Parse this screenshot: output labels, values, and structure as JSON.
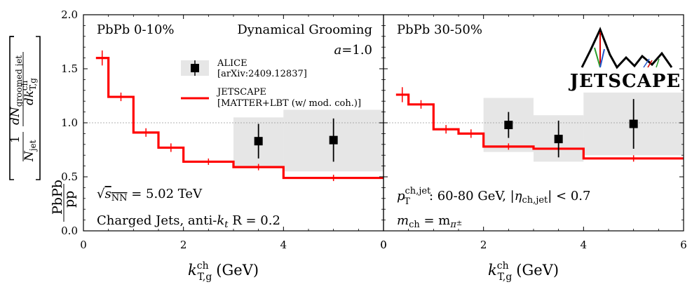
{
  "colors": {
    "jetscape": "#ff0000",
    "alice": "#000000",
    "syst_band": "#e6e6e6",
    "ref_line": "#999999"
  },
  "y_label": {
    "left_fraction_num": "PbPb",
    "left_fraction_den": "pp",
    "bracket_num": "1",
    "bracket_den": "N",
    "bracket_den_sub": "jet",
    "dn_num": "dN",
    "dn_num_sub": "groomed jet",
    "dn_den": "dk",
    "dn_den_sub": "T,g",
    "dn_den_sup": "ch"
  },
  "x_label": {
    "main": "k",
    "sup": "ch",
    "sub": "T,g",
    "unit": "(GeV)"
  },
  "annotations": {
    "panel1_system": "PbPb 0-10%",
    "panel1_grooming": "Dynamical Grooming",
    "panel1_a_sym": "a",
    "panel1_a_val": "=1.0",
    "panel1_energy_pre": "√",
    "panel1_energy_sym": "s",
    "panel1_energy_sub": "NN",
    "panel1_energy_val": " = 5.02 TeV",
    "panel1_jets": "Charged Jets, anti-",
    "panel1_kt": "k",
    "panel1_kt_sub": "t",
    "panel1_R": " R = 0.2",
    "panel2_system": "PbPb 30-50%",
    "panel2_pt_sym": "p",
    "panel2_pt_sup": "ch,jet",
    "panel2_pt_sub": "T",
    "panel2_pt_val": ": 60-80 GeV, |",
    "panel2_eta": "η",
    "panel2_eta_sub": "ch,jet",
    "panel2_eta_val": "| < 0.7",
    "panel2_m_sym": "m",
    "panel2_m_sub": "ch",
    "panel2_m_eq": " = m",
    "panel2_m_pi": "π",
    "panel2_m_pm": "±"
  },
  "legend": {
    "alice_label": "ALICE",
    "alice_ref": "[arXiv:2409.12837]",
    "jetscape_label": "JETSCAPE",
    "jetscape_ref": "[MATTER+LBT (w/ mod. coh.)]"
  },
  "logo": {
    "text": "JETSCAPE"
  },
  "chart_data": [
    {
      "type": "line",
      "panel": "PbPb 0-10%",
      "xlabel": "k_T,g^ch (GeV)",
      "ylabel": "PbPb/pp [1/N_jet dN_groomed jet/dk_T,g^ch]",
      "xlim": [
        0,
        6
      ],
      "ylim": [
        0.0,
        2.0
      ],
      "x_ticks": [
        "0",
        "2",
        "4"
      ],
      "y_ticks": [
        "0.0",
        "0.5",
        "1.0",
        "1.5",
        "2.0"
      ],
      "reference_line": 1.0,
      "series": [
        {
          "name": "JETSCAPE [MATTER+LBT (w/ mod. coh.)]",
          "style": "step",
          "bin_edges": [
            0.25,
            0.5,
            1.0,
            1.5,
            2.0,
            3.0,
            4.0,
            6.0
          ],
          "values": [
            1.6,
            1.24,
            0.91,
            0.77,
            0.64,
            0.59,
            0.49
          ],
          "errors": [
            0.05,
            0.02,
            0.02,
            0.02,
            0.01,
            0.01,
            0.01
          ]
        },
        {
          "name": "ALICE [arXiv:2409.12837]",
          "style": "points",
          "x": [
            3.5,
            5.0
          ],
          "values": [
            0.83,
            0.84
          ],
          "stat_errors": [
            0.16,
            0.2
          ],
          "syst_bins": [
            [
              3.0,
              4.0
            ],
            [
              4.0,
              6.0
            ]
          ],
          "syst_ranges": [
            [
              0.6,
              1.05
            ],
            [
              0.55,
              1.12
            ]
          ]
        }
      ]
    },
    {
      "type": "line",
      "panel": "PbPb 30-50%",
      "xlabel": "k_T,g^ch (GeV)",
      "xlim": [
        0,
        6
      ],
      "ylim": [
        0.0,
        2.0
      ],
      "x_ticks": [
        "0",
        "2",
        "4",
        "6"
      ],
      "reference_line": 1.0,
      "series": [
        {
          "name": "JETSCAPE [MATTER+LBT (w/ mod. coh.)]",
          "style": "step",
          "bin_edges": [
            0.25,
            0.5,
            1.0,
            1.5,
            2.0,
            3.0,
            4.0,
            6.0
          ],
          "values": [
            1.26,
            1.17,
            0.94,
            0.9,
            0.78,
            0.76,
            0.67
          ],
          "errors": [
            0.05,
            0.02,
            0.02,
            0.02,
            0.01,
            0.01,
            0.01
          ]
        },
        {
          "name": "ALICE [arXiv:2409.12837]",
          "style": "points",
          "x": [
            2.5,
            3.5,
            5.0
          ],
          "values": [
            0.98,
            0.85,
            0.99
          ],
          "stat_errors": [
            0.12,
            0.17,
            0.23
          ],
          "syst_bins": [
            [
              2.0,
              3.0
            ],
            [
              3.0,
              4.0
            ],
            [
              4.0,
              6.0
            ]
          ],
          "syst_ranges": [
            [
              0.73,
              1.23
            ],
            [
              0.64,
              1.07
            ],
            [
              0.7,
              1.28
            ]
          ]
        }
      ]
    }
  ]
}
